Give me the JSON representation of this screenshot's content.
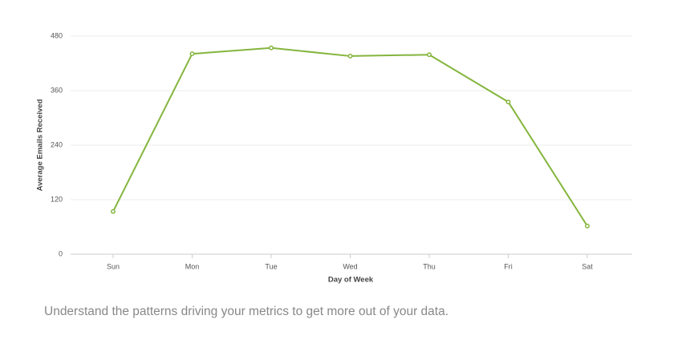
{
  "chart_data": {
    "type": "line",
    "x_label": "Day of Week",
    "y_label": "Average Emails Received",
    "categories": [
      "Sun",
      "Mon",
      "Tue",
      "Wed",
      "Thu",
      "Fri",
      "Sat"
    ],
    "values": [
      94,
      441,
      454,
      436,
      439,
      335,
      62
    ],
    "color": "#84b53d",
    "ylim": [
      0,
      480
    ],
    "yticks": [
      0,
      120,
      240,
      360,
      480
    ],
    "grid": true
  },
  "caption": "Understand the patterns driving your metrics to get more out of your data."
}
